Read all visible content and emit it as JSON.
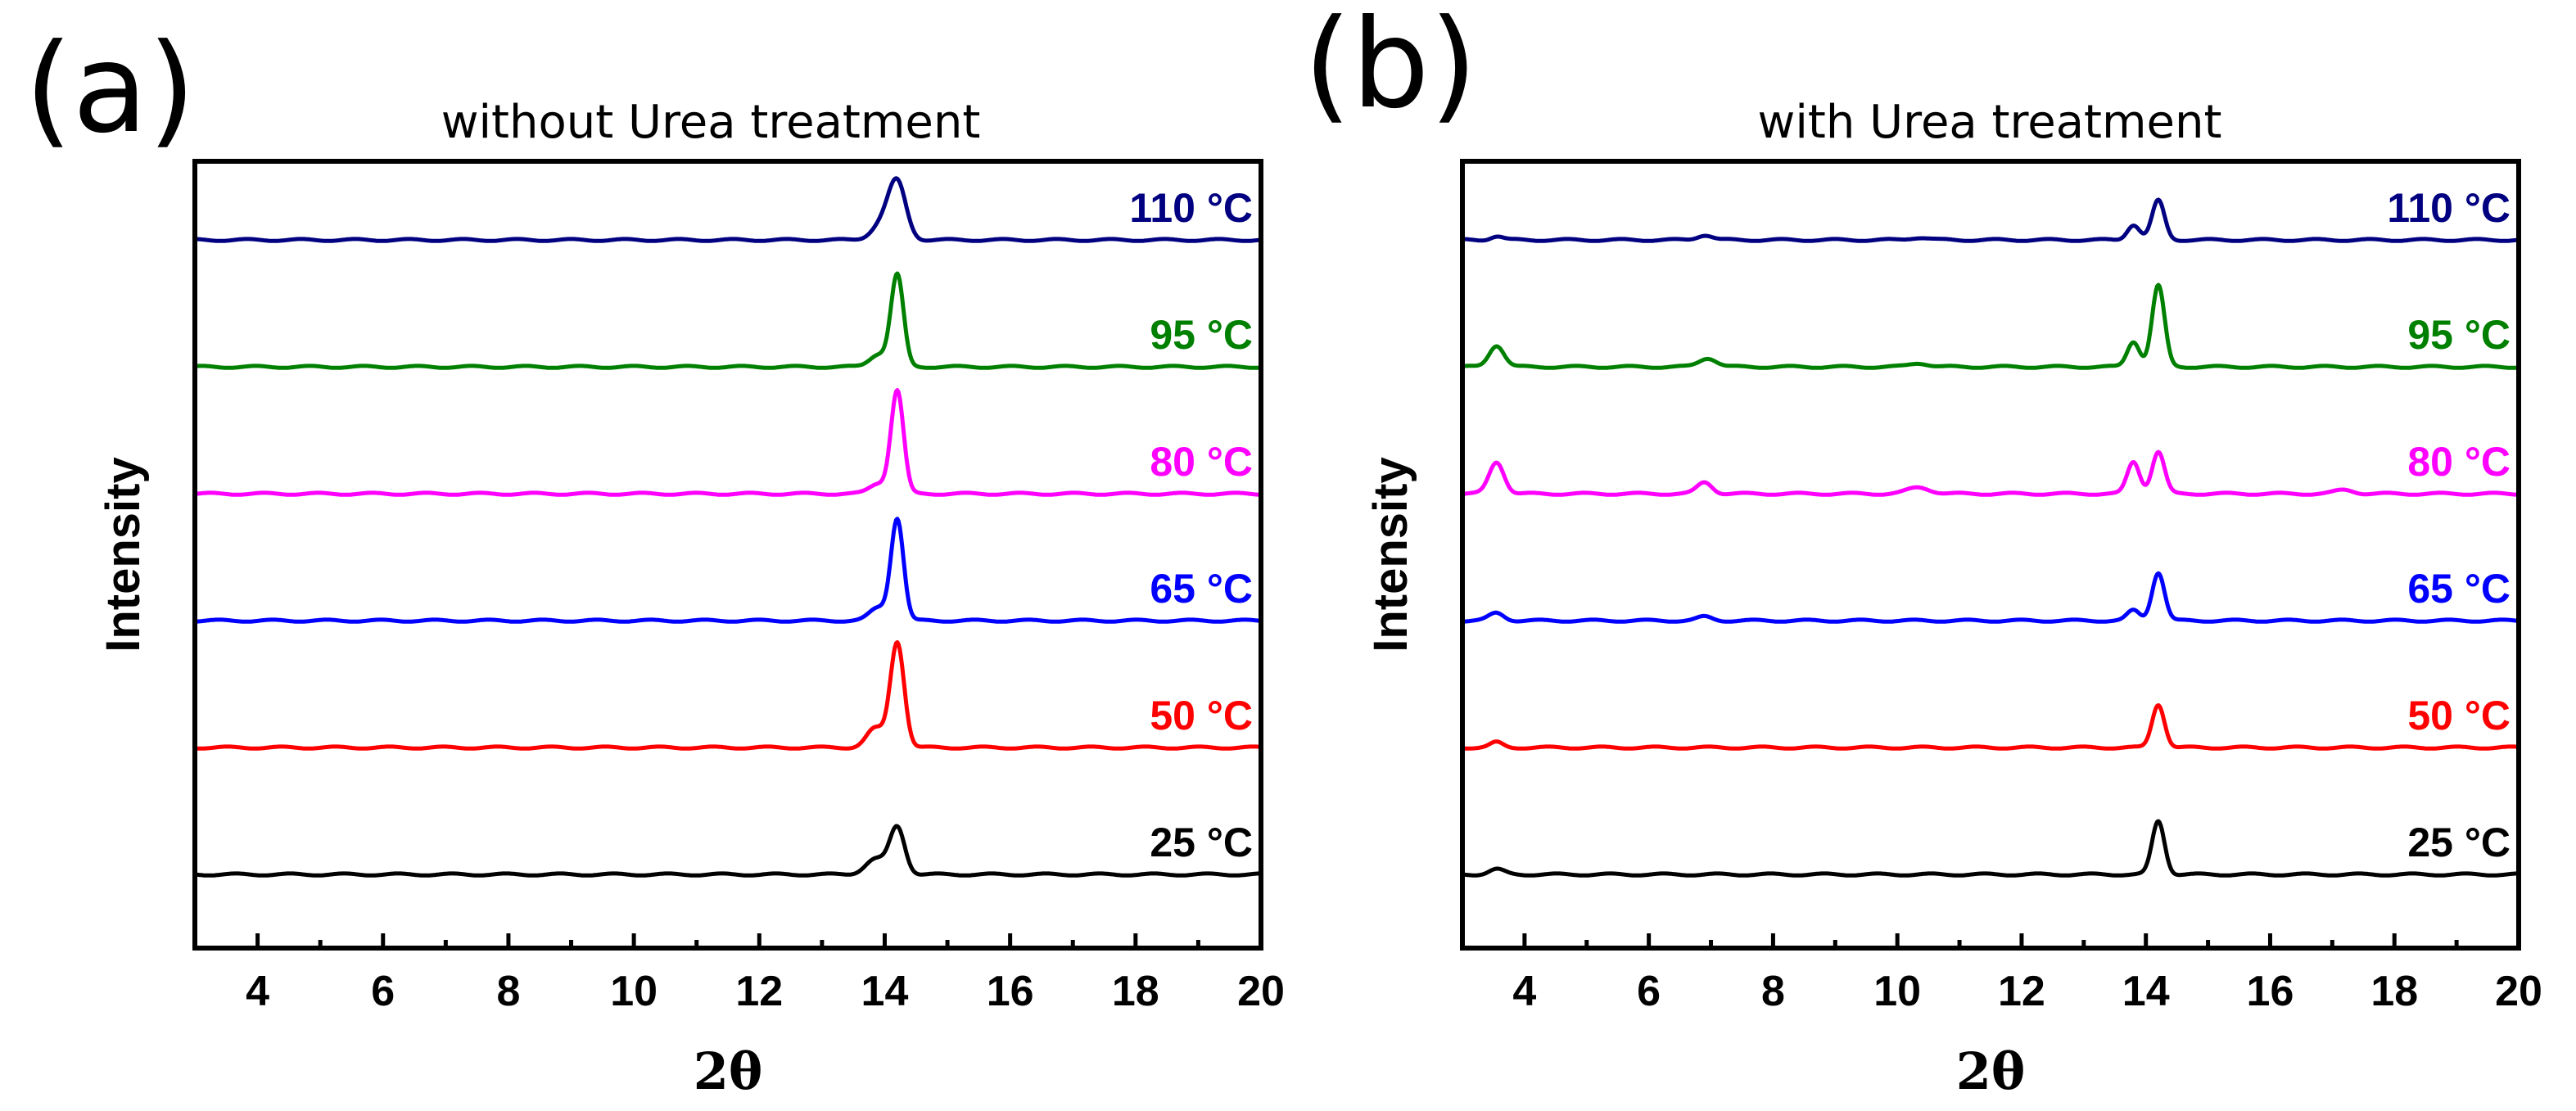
{
  "colors": {
    "25 °C": "#000000",
    "50 °C": "#ff0000",
    "65 °C": "#0000ff",
    "80 °C": "#ff00ff",
    "95 °C": "#008000",
    "110 °C": "#000080"
  },
  "chart_data": [
    {
      "type": "line",
      "panel_letter": "(a)",
      "title": "without Urea treatment",
      "xlabel": "2θ",
      "ylabel": "Intensity",
      "xlim": [
        3,
        20
      ],
      "ylim": [
        0,
        6.2
      ],
      "xticks": [
        4,
        6,
        8,
        10,
        12,
        14,
        16,
        18,
        20
      ],
      "yticks_shown": false,
      "series": [
        {
          "name": "25 °C",
          "color": "#000000",
          "offset": 0,
          "peaks": [
            {
              "center": 13.85,
              "height": 0.12,
              "width": 0.16
            },
            {
              "center": 14.2,
              "height": 0.37,
              "width": 0.12
            }
          ]
        },
        {
          "name": "50 °C",
          "color": "#ff0000",
          "offset": 1,
          "peaks": [
            {
              "center": 13.85,
              "height": 0.15,
              "width": 0.14
            },
            {
              "center": 14.2,
              "height": 0.83,
              "width": 0.11
            }
          ]
        },
        {
          "name": "65 °C",
          "color": "#0000ff",
          "offset": 2,
          "peaks": [
            {
              "center": 13.9,
              "height": 0.1,
              "width": 0.14
            },
            {
              "center": 14.2,
              "height": 0.8,
              "width": 0.1
            }
          ]
        },
        {
          "name": "80 °C",
          "color": "#ff00ff",
          "offset": 3,
          "peaks": [
            {
              "center": 13.9,
              "height": 0.08,
              "width": 0.14
            },
            {
              "center": 14.2,
              "height": 0.81,
              "width": 0.1
            }
          ]
        },
        {
          "name": "95 °C",
          "color": "#008000",
          "offset": 4,
          "peaks": [
            {
              "center": 13.9,
              "height": 0.1,
              "width": 0.14
            },
            {
              "center": 14.2,
              "height": 0.72,
              "width": 0.1
            }
          ]
        },
        {
          "name": "110 °C",
          "color": "#000080",
          "offset": 5,
          "peaks": [
            {
              "center": 13.95,
              "height": 0.12,
              "width": 0.16
            },
            {
              "center": 14.2,
              "height": 0.44,
              "width": 0.14
            }
          ]
        }
      ]
    },
    {
      "type": "line",
      "panel_letter": "(b)",
      "title": "with Urea treatment",
      "xlabel": "2θ",
      "ylabel": "Intensity",
      "xlim": [
        3,
        20
      ],
      "ylim": [
        0,
        6.2
      ],
      "xticks": [
        4,
        6,
        8,
        10,
        12,
        14,
        16,
        18,
        20
      ],
      "yticks_shown": false,
      "series": [
        {
          "name": "25 °C",
          "color": "#000000",
          "offset": 0,
          "peaks": [
            {
              "center": 3.55,
              "height": 0.04,
              "width": 0.12
            },
            {
              "center": 14.2,
              "height": 0.42,
              "width": 0.1
            }
          ]
        },
        {
          "name": "50 °C",
          "color": "#ff0000",
          "offset": 1,
          "peaks": [
            {
              "center": 3.55,
              "height": 0.04,
              "width": 0.1
            },
            {
              "center": 14.2,
              "height": 0.34,
              "width": 0.1
            }
          ]
        },
        {
          "name": "65 °C",
          "color": "#0000ff",
          "offset": 2,
          "peaks": [
            {
              "center": 3.55,
              "height": 0.06,
              "width": 0.12
            },
            {
              "center": 6.9,
              "height": 0.03,
              "width": 0.12
            },
            {
              "center": 13.8,
              "height": 0.08,
              "width": 0.1
            },
            {
              "center": 14.2,
              "height": 0.38,
              "width": 0.1
            }
          ]
        },
        {
          "name": "80 °C",
          "color": "#ff00ff",
          "offset": 3,
          "peaks": [
            {
              "center": 3.55,
              "height": 0.25,
              "width": 0.12
            },
            {
              "center": 6.9,
              "height": 0.09,
              "width": 0.12
            },
            {
              "center": 10.35,
              "height": 0.05,
              "width": 0.18
            },
            {
              "center": 13.8,
              "height": 0.25,
              "width": 0.1
            },
            {
              "center": 14.2,
              "height": 0.33,
              "width": 0.1
            },
            {
              "center": 17.2,
              "height": 0.03,
              "width": 0.15
            }
          ]
        },
        {
          "name": "95 °C",
          "color": "#008000",
          "offset": 4,
          "peaks": [
            {
              "center": 3.55,
              "height": 0.17,
              "width": 0.12
            },
            {
              "center": 6.95,
              "height": 0.07,
              "width": 0.14
            },
            {
              "center": 10.35,
              "height": 0.03,
              "width": 0.15
            },
            {
              "center": 13.8,
              "height": 0.2,
              "width": 0.1
            },
            {
              "center": 14.2,
              "height": 0.64,
              "width": 0.1
            }
          ]
        },
        {
          "name": "110 °C",
          "color": "#000080",
          "offset": 5,
          "peaks": [
            {
              "center": 3.55,
              "height": 0.03,
              "width": 0.1
            },
            {
              "center": 6.9,
              "height": 0.04,
              "width": 0.12
            },
            {
              "center": 10.35,
              "height": 0.02,
              "width": 0.15
            },
            {
              "center": 13.8,
              "height": 0.12,
              "width": 0.1
            },
            {
              "center": 14.2,
              "height": 0.31,
              "width": 0.1
            }
          ]
        }
      ]
    }
  ]
}
